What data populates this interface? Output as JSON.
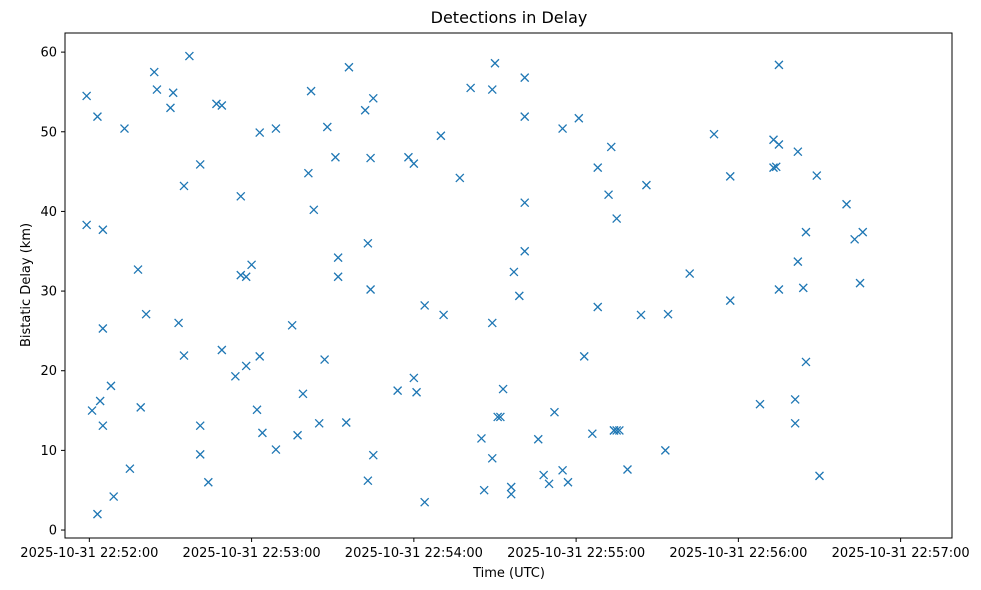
{
  "chart_data": {
    "type": "scatter",
    "title": "Detections in Delay",
    "xlabel": "Time (UTC)",
    "ylabel": "Bistatic Delay (km)",
    "marker": "x",
    "color": "#1f77b4",
    "grid": false,
    "x_ticks": [
      "2025-10-31 22:52:00",
      "2025-10-31 22:53:00",
      "2025-10-31 22:54:00",
      "2025-10-31 22:55:00",
      "2025-10-31 22:56:00",
      "2025-10-31 22:57:00"
    ],
    "y_ticks": [
      0,
      10,
      20,
      30,
      40,
      50,
      60
    ],
    "xlim": [
      "2025-10-31 22:51:51",
      "2025-10-31 22:57:19"
    ],
    "ylim": [
      -1,
      62.4
    ],
    "series": [
      {
        "points": [
          [
            "2025-10-31 22:51:59",
            54.5
          ],
          [
            "2025-10-31 22:51:59",
            38.3
          ],
          [
            "2025-10-31 22:52:01",
            15.0
          ],
          [
            "2025-10-31 22:52:03",
            2.0
          ],
          [
            "2025-10-31 22:52:03",
            51.9
          ],
          [
            "2025-10-31 22:52:04",
            16.2
          ],
          [
            "2025-10-31 22:52:05",
            13.1
          ],
          [
            "2025-10-31 22:52:05",
            25.3
          ],
          [
            "2025-10-31 22:52:05",
            37.7
          ],
          [
            "2025-10-31 22:52:08",
            18.1
          ],
          [
            "2025-10-31 22:52:09",
            4.2
          ],
          [
            "2025-10-31 22:52:13",
            50.4
          ],
          [
            "2025-10-31 22:52:15",
            7.7
          ],
          [
            "2025-10-31 22:52:18",
            32.7
          ],
          [
            "2025-10-31 22:52:19",
            15.4
          ],
          [
            "2025-10-31 22:52:21",
            27.1
          ],
          [
            "2025-10-31 22:52:24",
            57.5
          ],
          [
            "2025-10-31 22:52:25",
            55.3
          ],
          [
            "2025-10-31 22:52:30",
            53.0
          ],
          [
            "2025-10-31 22:52:31",
            54.9
          ],
          [
            "2025-10-31 22:52:33",
            26.0
          ],
          [
            "2025-10-31 22:52:35",
            43.2
          ],
          [
            "2025-10-31 22:52:35",
            21.9
          ],
          [
            "2025-10-31 22:52:37",
            59.5
          ],
          [
            "2025-10-31 22:52:41",
            45.9
          ],
          [
            "2025-10-31 22:52:41",
            9.5
          ],
          [
            "2025-10-31 22:52:41",
            13.1
          ],
          [
            "2025-10-31 22:52:44",
            6.0
          ],
          [
            "2025-10-31 22:52:47",
            53.5
          ],
          [
            "2025-10-31 22:52:49",
            22.6
          ],
          [
            "2025-10-31 22:52:49",
            53.3
          ],
          [
            "2025-10-31 22:52:54",
            19.3
          ],
          [
            "2025-10-31 22:52:56",
            41.9
          ],
          [
            "2025-10-31 22:52:56",
            32.0
          ],
          [
            "2025-10-31 22:52:58",
            20.6
          ],
          [
            "2025-10-31 22:52:58",
            31.8
          ],
          [
            "2025-10-31 22:53:00",
            33.3
          ],
          [
            "2025-10-31 22:53:02",
            15.1
          ],
          [
            "2025-10-31 22:53:03",
            21.8
          ],
          [
            "2025-10-31 22:53:03",
            49.9
          ],
          [
            "2025-10-31 22:53:04",
            12.2
          ],
          [
            "2025-10-31 22:53:09",
            10.1
          ],
          [
            "2025-10-31 22:53:09",
            50.4
          ],
          [
            "2025-10-31 22:53:15",
            25.7
          ],
          [
            "2025-10-31 22:53:17",
            11.9
          ],
          [
            "2025-10-31 22:53:19",
            17.1
          ],
          [
            "2025-10-31 22:53:21",
            44.8
          ],
          [
            "2025-10-31 22:53:22",
            55.1
          ],
          [
            "2025-10-31 22:53:23",
            40.2
          ],
          [
            "2025-10-31 22:53:25",
            13.4
          ],
          [
            "2025-10-31 22:53:27",
            21.4
          ],
          [
            "2025-10-31 22:53:28",
            50.6
          ],
          [
            "2025-10-31 22:53:31",
            46.8
          ],
          [
            "2025-10-31 22:53:32",
            34.2
          ],
          [
            "2025-10-31 22:53:32",
            31.8
          ],
          [
            "2025-10-31 22:53:35",
            13.5
          ],
          [
            "2025-10-31 22:53:36",
            58.1
          ],
          [
            "2025-10-31 22:53:42",
            52.7
          ],
          [
            "2025-10-31 22:53:43",
            36.0
          ],
          [
            "2025-10-31 22:53:43",
            6.2
          ],
          [
            "2025-10-31 22:53:44",
            46.7
          ],
          [
            "2025-10-31 22:53:44",
            30.2
          ],
          [
            "2025-10-31 22:53:45",
            54.2
          ],
          [
            "2025-10-31 22:53:45",
            9.4
          ],
          [
            "2025-10-31 22:53:54",
            17.5
          ],
          [
            "2025-10-31 22:53:58",
            46.8
          ],
          [
            "2025-10-31 22:54:00",
            19.1
          ],
          [
            "2025-10-31 22:54:00",
            46.0
          ],
          [
            "2025-10-31 22:54:01",
            17.3
          ],
          [
            "2025-10-31 22:54:04",
            3.5
          ],
          [
            "2025-10-31 22:54:04",
            28.2
          ],
          [
            "2025-10-31 22:54:10",
            49.5
          ],
          [
            "2025-10-31 22:54:11",
            27.0
          ],
          [
            "2025-10-31 22:54:17",
            44.2
          ],
          [
            "2025-10-31 22:54:21",
            55.5
          ],
          [
            "2025-10-31 22:54:25",
            11.5
          ],
          [
            "2025-10-31 22:54:26",
            5.0
          ],
          [
            "2025-10-31 22:54:29",
            9.0
          ],
          [
            "2025-10-31 22:54:29",
            26.0
          ],
          [
            "2025-10-31 22:54:29",
            55.3
          ],
          [
            "2025-10-31 22:54:30",
            58.6
          ],
          [
            "2025-10-31 22:54:31",
            14.2
          ],
          [
            "2025-10-31 22:54:32",
            14.2
          ],
          [
            "2025-10-31 22:54:33",
            17.7
          ],
          [
            "2025-10-31 22:54:36",
            4.5
          ],
          [
            "2025-10-31 22:54:36",
            5.4
          ],
          [
            "2025-10-31 22:54:37",
            32.4
          ],
          [
            "2025-10-31 22:54:39",
            29.4
          ],
          [
            "2025-10-31 22:54:41",
            56.8
          ],
          [
            "2025-10-31 22:54:41",
            51.9
          ],
          [
            "2025-10-31 22:54:41",
            41.1
          ],
          [
            "2025-10-31 22:54:41",
            35.0
          ],
          [
            "2025-10-31 22:54:46",
            11.4
          ],
          [
            "2025-10-31 22:54:48",
            6.9
          ],
          [
            "2025-10-31 22:54:50",
            5.8
          ],
          [
            "2025-10-31 22:54:52",
            14.8
          ],
          [
            "2025-10-31 22:54:55",
            7.5
          ],
          [
            "2025-10-31 22:54:55",
            50.4
          ],
          [
            "2025-10-31 22:54:57",
            6.0
          ],
          [
            "2025-10-31 22:55:01",
            51.7
          ],
          [
            "2025-10-31 22:55:03",
            21.8
          ],
          [
            "2025-10-31 22:55:06",
            12.1
          ],
          [
            "2025-10-31 22:55:08",
            45.5
          ],
          [
            "2025-10-31 22:55:08",
            28.0
          ],
          [
            "2025-10-31 22:55:12",
            42.1
          ],
          [
            "2025-10-31 22:55:13",
            48.1
          ],
          [
            "2025-10-31 22:55:14",
            12.5
          ],
          [
            "2025-10-31 22:55:14",
            12.5
          ],
          [
            "2025-10-31 22:55:15",
            12.5
          ],
          [
            "2025-10-31 22:55:16",
            12.5
          ],
          [
            "2025-10-31 22:55:15",
            39.1
          ],
          [
            "2025-10-31 22:55:19",
            7.6
          ],
          [
            "2025-10-31 22:55:24",
            27.0
          ],
          [
            "2025-10-31 22:55:26",
            43.3
          ],
          [
            "2025-10-31 22:55:33",
            10.0
          ],
          [
            "2025-10-31 22:55:34",
            27.1
          ],
          [
            "2025-10-31 22:55:42",
            32.2
          ],
          [
            "2025-10-31 22:55:51",
            49.7
          ],
          [
            "2025-10-31 22:55:57",
            44.4
          ],
          [
            "2025-10-31 22:55:57",
            28.8
          ],
          [
            "2025-10-31 22:56:08",
            15.8
          ],
          [
            "2025-10-31 22:56:13",
            49.0
          ],
          [
            "2025-10-31 22:56:13",
            45.5
          ],
          [
            "2025-10-31 22:56:14",
            45.6
          ],
          [
            "2025-10-31 22:56:15",
            48.4
          ],
          [
            "2025-10-31 22:56:15",
            58.4
          ],
          [
            "2025-10-31 22:56:15",
            30.2
          ],
          [
            "2025-10-31 22:56:21",
            13.4
          ],
          [
            "2025-10-31 22:56:21",
            16.4
          ],
          [
            "2025-10-31 22:56:22",
            33.7
          ],
          [
            "2025-10-31 22:56:22",
            47.5
          ],
          [
            "2025-10-31 22:56:24",
            30.4
          ],
          [
            "2025-10-31 22:56:25",
            37.4
          ],
          [
            "2025-10-31 22:56:25",
            21.1
          ],
          [
            "2025-10-31 22:56:29",
            44.5
          ],
          [
            "2025-10-31 22:56:30",
            6.8
          ],
          [
            "2025-10-31 22:56:40",
            40.9
          ],
          [
            "2025-10-31 22:56:43",
            36.5
          ],
          [
            "2025-10-31 22:56:45",
            31.0
          ],
          [
            "2025-10-31 22:56:46",
            37.4
          ]
        ]
      }
    ]
  }
}
